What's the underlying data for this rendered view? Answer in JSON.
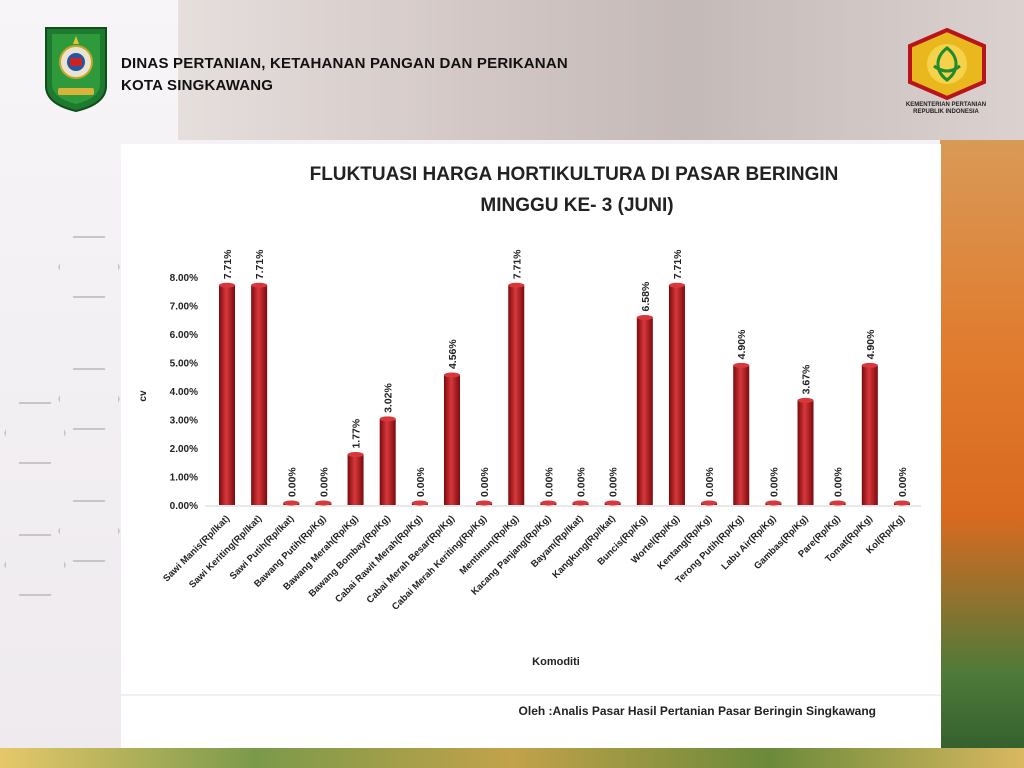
{
  "header": {
    "org_line1": "DINAS PERTANIAN, KETAHANAN PANGAN DAN PERIKANAN",
    "org_line2": "KOTA SINGKAWANG",
    "ministry_line1": "KEMENTERIAN PERTANIAN",
    "ministry_line2": "REPUBLIK INDONESIA"
  },
  "footer": {
    "credit": "Oleh :Analis Pasar Hasil Pertanian Pasar Beringin Singkawang"
  },
  "colors": {
    "bar": "#b01217",
    "bar_dark": "#7a0a0d",
    "bar_light": "#d8383c"
  },
  "chart_data": {
    "type": "bar",
    "title": "FLUKTUASI HARGA HORTIKULTURA DI PASAR BERINGIN",
    "subtitle": "MINGGU KE- 3 (JUNI)",
    "xlabel": "Komoditi",
    "ylabel": "cv",
    "ylim": [
      0,
      8
    ],
    "yticks": [
      "0.00%",
      "1.00%",
      "2.00%",
      "3.00%",
      "4.00%",
      "5.00%",
      "6.00%",
      "7.00%",
      "8.00%"
    ],
    "grid": false,
    "categories": [
      "Sawi Manis(Rp/Ikat)",
      "Sawi Keriting(Rp/Ikat)",
      "Sawi Putih(Rp/Ikat)",
      "Bawang Putih(Rp/Kg)",
      "Bawang Merah(Rp/Kg)",
      "Bawang Bombay(Rp/Kg)",
      "Cabai Rawit Merah(Rp/Kg)",
      "Cabai Merah Besar(Rp/Kg)",
      "Cabai Merah Keriting(Rp/Kg)",
      "Mentimun(Rp/Kg)",
      "Kacang Panjang(Rp/Kg)",
      "Bayam(Rp/Ikat)",
      "Kangkung(Rp/Ikat)",
      "Buncis(Rp/Kg)",
      "Wortel(Rp/Kg)",
      "Kentang(Rp/Kg)",
      "Terong Putih(Rp/Kg)",
      "Labu Air(Rp/Kg)",
      "Gambas(Rp/Kg)",
      "Pare(Rp/Kg)",
      "Tomat(Rp/Kg)",
      "Kol(Rp/Kg)"
    ],
    "values": [
      7.71,
      7.71,
      0,
      0,
      1.77,
      3.02,
      0,
      4.56,
      0,
      7.71,
      0,
      0,
      0,
      6.58,
      7.71,
      0,
      4.9,
      0,
      3.67,
      0,
      4.9,
      0
    ],
    "labels": [
      "7.71%",
      "7.71%",
      "0.00%",
      "0.00%",
      "1.77%",
      "3.02%",
      "0.00%",
      "4.56%",
      "0.00%",
      "7.71%",
      "0.00%",
      "0.00%",
      "0.00%",
      "6.58%",
      "7.71%",
      "0.00%",
      "4.90%",
      "0.00%",
      "3.67%",
      "0.00%",
      "4.90%",
      "0.00%"
    ]
  }
}
